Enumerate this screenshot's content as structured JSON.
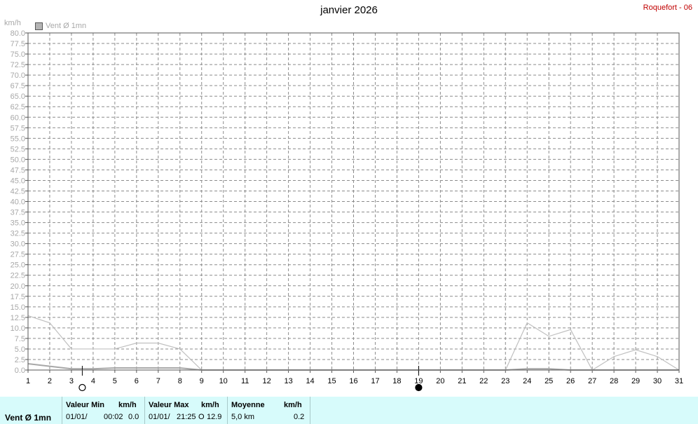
{
  "header": {
    "title": "janvier 2026",
    "station": "Roquefort - 06",
    "unit": "km/h",
    "legend": "Vent Ø 1mn"
  },
  "chart_data": {
    "type": "line",
    "title": "janvier 2026",
    "ylabel": "km/h",
    "xlim": [
      1,
      31
    ],
    "ylim": [
      0,
      80
    ],
    "y_tick_step": 2.5,
    "x_ticks": [
      1,
      2,
      3,
      4,
      5,
      6,
      7,
      8,
      9,
      10,
      11,
      12,
      13,
      14,
      15,
      16,
      17,
      18,
      19,
      20,
      21,
      22,
      23,
      24,
      25,
      26,
      27,
      28,
      29,
      30,
      31
    ],
    "y_ticks": [
      "0.0",
      "2.5",
      "5.0",
      "7.5",
      "10.0",
      "12.5",
      "15.0",
      "17.5",
      "20.0",
      "22.5",
      "25.0",
      "27.5",
      "30.0",
      "32.5",
      "35.0",
      "37.5",
      "40.0",
      "42.5",
      "45.0",
      "47.5",
      "50.0",
      "52.5",
      "55.0",
      "57.5",
      "60.0",
      "62.5",
      "65.0",
      "67.5",
      "70.0",
      "72.5",
      "75.0",
      "77.5",
      "80.0"
    ],
    "grid": true,
    "legend_position": "top-left",
    "series": [
      {
        "name": "Vent Ø 1mn",
        "role": "max",
        "color": "#c0c0c0",
        "x": [
          1,
          2,
          3,
          4,
          5,
          6,
          7,
          8,
          9,
          10,
          11,
          12,
          13,
          14,
          15,
          16,
          17,
          18,
          19,
          20,
          21,
          22,
          23,
          24,
          25,
          26,
          27,
          28,
          29,
          30,
          31
        ],
        "y": [
          12.9,
          11.2,
          5.0,
          5.0,
          5.0,
          6.4,
          6.4,
          5.0,
          0,
          0,
          0,
          0,
          0,
          0,
          0,
          0,
          0,
          0,
          0,
          0,
          0,
          0,
          0,
          11.2,
          8.0,
          9.6,
          0,
          3.2,
          4.8,
          3.2,
          0
        ]
      },
      {
        "name": "Vent Ø 1mn",
        "role": "mean",
        "color": "#a8a8a8",
        "x": [
          1,
          2,
          3,
          4,
          5,
          6,
          7,
          8,
          9,
          10,
          11,
          12,
          13,
          14,
          15,
          16,
          17,
          18,
          19,
          20,
          21,
          22,
          23,
          24,
          25,
          26,
          27,
          28,
          29,
          30,
          31
        ],
        "y": [
          1.5,
          0.9,
          0.3,
          0.3,
          0.5,
          0.5,
          0.5,
          0.5,
          0,
          0,
          0,
          0,
          0,
          0,
          0,
          0,
          0,
          0,
          0,
          0,
          0,
          0,
          0,
          0.3,
          0.3,
          0,
          0,
          0,
          0,
          0,
          0
        ]
      }
    ],
    "moon_phases": [
      {
        "x": 3.5,
        "phase": "full"
      },
      {
        "x": 19,
        "phase": "new"
      }
    ]
  },
  "footer": {
    "series_label": "Vent Ø 1mn",
    "min": {
      "label": "Valeur Min",
      "unit": "km/h",
      "date": "01/01/",
      "time": "00:02",
      "value": "0.0"
    },
    "max": {
      "label": "Valeur Max",
      "unit": "km/h",
      "date": "01/01/",
      "time": "21:25",
      "dir": "O",
      "value": "12.9"
    },
    "mean": {
      "label": "Moyenne",
      "unit": "km/h",
      "extra": "5,0 km",
      "value": "0.2"
    }
  }
}
